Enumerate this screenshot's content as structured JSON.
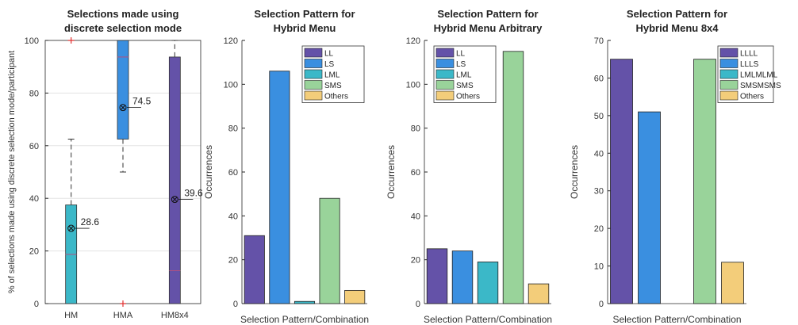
{
  "chart_data": [
    {
      "type": "box",
      "title": [
        "Selections made using",
        "discrete selection mode"
      ],
      "xlabel": "",
      "ylabel": "% of selections made using discrete selection mode/participant",
      "ylim": [
        0,
        100
      ],
      "yticks": [
        0,
        20,
        40,
        60,
        80,
        100
      ],
      "grid": true,
      "categories": [
        "HM",
        "HMA",
        "HM8x4"
      ],
      "boxes": [
        {
          "category": "HM",
          "q1": 0,
          "median": 18.7,
          "q3": 37.5,
          "whisker_low": 0,
          "whisker_high": 62.5,
          "mean": 28.6,
          "mean_label": "28.6",
          "outliers": [
            100
          ],
          "color": "#3bb8c8"
        },
        {
          "category": "HMA",
          "q1": 62.5,
          "median": 93.7,
          "q3": 100,
          "whisker_low": 50,
          "whisker_high": 100,
          "mean": 74.5,
          "mean_label": "74.5",
          "outliers": [
            0
          ],
          "color": "#3a8fe0"
        },
        {
          "category": "HM8x4",
          "q1": 0,
          "median": 12.5,
          "q3": 93.7,
          "whisker_low": 0,
          "whisker_high": 100,
          "mean": 39.6,
          "mean_label": "39.6",
          "outliers": [],
          "color": "#6452a8"
        }
      ]
    },
    {
      "type": "bar",
      "title": [
        "Selection Pattern for",
        "Hybrid Menu"
      ],
      "xlabel": "Selection Pattern/Combination",
      "ylabel": "Occurrences",
      "ylim": [
        0,
        120
      ],
      "yticks": [
        0,
        20,
        40,
        60,
        80,
        100,
        120
      ],
      "categories": [
        "LL",
        "LS",
        "LML",
        "SMS",
        "Others"
      ],
      "values": [
        31,
        106,
        1,
        48,
        6
      ],
      "legend": [
        "LL",
        "LS",
        "LML",
        "SMS",
        "Others"
      ],
      "legend_position": "top-right"
    },
    {
      "type": "bar",
      "title": [
        "Selection Pattern for",
        "Hybrid Menu Arbitrary"
      ],
      "xlabel": "Selection Pattern/Combination",
      "ylabel": "Occurrences",
      "ylim": [
        0,
        120
      ],
      "yticks": [
        0,
        20,
        40,
        60,
        80,
        100,
        120
      ],
      "categories": [
        "LL",
        "LS",
        "LML",
        "SMS",
        "Others"
      ],
      "values": [
        25,
        24,
        19,
        115,
        9
      ],
      "legend": [
        "LL",
        "LS",
        "LML",
        "SMS",
        "Others"
      ],
      "legend_position": "top-left"
    },
    {
      "type": "bar",
      "title": [
        "Selection Pattern for",
        "Hybrid Menu 8x4"
      ],
      "xlabel": "Selection Pattern/Combination",
      "ylabel": "Occurrences",
      "ylim": [
        0,
        70
      ],
      "yticks": [
        0,
        10,
        20,
        30,
        40,
        50,
        60,
        70
      ],
      "categories": [
        "LLLL",
        "LLLS",
        "LMLMLML",
        "SMSMSMS",
        "Others"
      ],
      "values": [
        65,
        51,
        0,
        65,
        11
      ],
      "legend": [
        "LLLL",
        "LLLS",
        "LMLMLML",
        "SMSMSMS",
        "Others"
      ],
      "legend_position": "top-right"
    }
  ],
  "colors": [
    "#6452a8",
    "#3a8fe0",
    "#3bb8c8",
    "#99d39a",
    "#f3cd7a"
  ]
}
